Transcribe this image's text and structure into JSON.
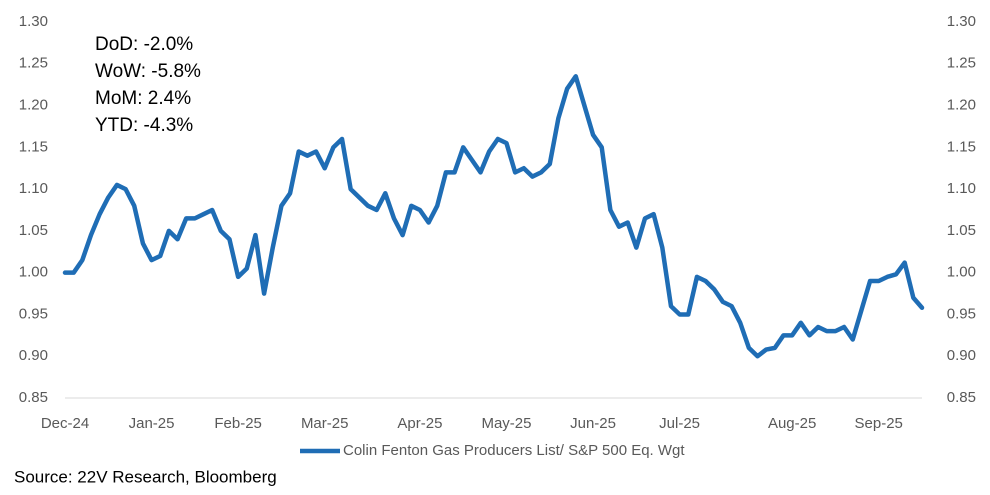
{
  "chart_data": {
    "type": "line",
    "annotations": [
      "DoD:  -2.0%",
      "WoW:  -5.8%",
      "MoM: 2.4%",
      "YTD:  -4.3%"
    ],
    "source": "Source: 22V Research, Bloomberg",
    "categories": [
      "Dec-24",
      null,
      null,
      null,
      null,
      null,
      null,
      null,
      null,
      null,
      "Jan-25",
      null,
      null,
      null,
      null,
      null,
      null,
      null,
      null,
      null,
      "Feb-25",
      null,
      null,
      null,
      null,
      null,
      null,
      null,
      null,
      null,
      "Mar-25",
      null,
      null,
      null,
      null,
      null,
      null,
      null,
      null,
      null,
      null,
      "Apr-25",
      null,
      null,
      null,
      null,
      null,
      null,
      null,
      null,
      null,
      "May-25",
      null,
      null,
      null,
      null,
      null,
      null,
      null,
      null,
      null,
      "Jun-25",
      null,
      null,
      null,
      null,
      null,
      null,
      null,
      null,
      null,
      "Jul-25",
      null,
      null,
      null,
      null,
      null,
      null,
      null,
      null,
      null,
      null,
      null,
      null,
      "Aug-25",
      null,
      null,
      null,
      null,
      null,
      null,
      null,
      null,
      null,
      "Sep-25",
      null,
      null,
      null,
      null,
      null
    ],
    "series": [
      {
        "name": "Colin Fenton Gas Producers List/ S&P 500 Eq. Wgt",
        "color": "#1f6db5",
        "values": [
          1.0,
          1.0,
          1.015,
          1.045,
          1.07,
          1.09,
          1.105,
          1.1,
          1.08,
          1.035,
          1.015,
          1.02,
          1.05,
          1.04,
          1.065,
          1.065,
          1.07,
          1.075,
          1.05,
          1.04,
          0.995,
          1.005,
          1.045,
          0.975,
          1.03,
          1.08,
          1.095,
          1.145,
          1.14,
          1.145,
          1.125,
          1.15,
          1.16,
          1.1,
          1.09,
          1.08,
          1.075,
          1.095,
          1.065,
          1.045,
          1.08,
          1.075,
          1.06,
          1.08,
          1.12,
          1.12,
          1.15,
          1.135,
          1.12,
          1.145,
          1.16,
          1.155,
          1.12,
          1.125,
          1.115,
          1.12,
          1.13,
          1.185,
          1.22,
          1.235,
          1.2,
          1.165,
          1.15,
          1.075,
          1.055,
          1.06,
          1.03,
          1.065,
          1.07,
          1.03,
          0.96,
          0.95,
          0.95,
          0.995,
          0.99,
          0.98,
          0.965,
          0.96,
          0.94,
          0.91,
          0.9,
          0.908,
          0.91,
          0.925,
          0.925,
          0.94,
          0.925,
          0.935,
          0.93,
          0.93,
          0.935,
          0.92,
          0.955,
          0.99,
          0.99,
          0.995,
          0.998,
          1.012,
          0.97,
          0.958
        ]
      }
    ],
    "ylim": [
      0.85,
      1.3
    ],
    "yticks": [
      0.85,
      {
        "value": 0.9,
        "label": "0.90"
      },
      0.95,
      {
        "value": 1.0,
        "label": "1.00"
      },
      1.05,
      {
        "value": 1.1,
        "label": "1.10"
      },
      1.15,
      {
        "value": 1.2,
        "label": "1.20"
      },
      1.25,
      {
        "value": 1.3,
        "label": "1.30"
      }
    ],
    "y2lim": [
      0.85,
      1.3
    ],
    "y2ticks": [
      0.85,
      {
        "value": 0.9,
        "label": "0.90"
      },
      0.95,
      {
        "value": 1.0,
        "label": "1.00"
      },
      1.05,
      {
        "value": 1.1,
        "label": "1.10"
      },
      1.15,
      {
        "value": 1.2,
        "label": "1.20"
      },
      1.25,
      {
        "value": 1.3,
        "label": "1.30"
      }
    ],
    "grid": false
  }
}
